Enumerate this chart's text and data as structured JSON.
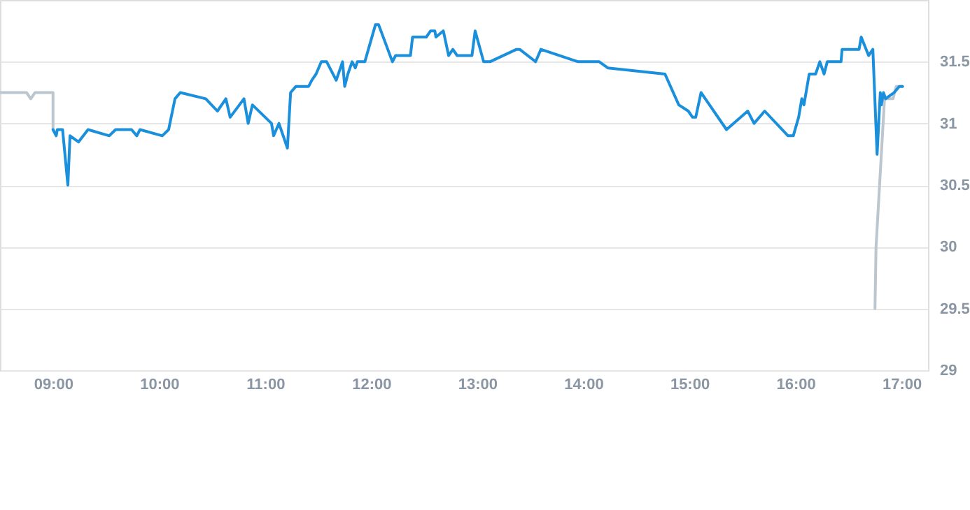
{
  "chart_data": {
    "type": "line",
    "xlim": [
      8.5,
      17.25
    ],
    "ylim": [
      29,
      32
    ],
    "xticks": [
      {
        "value": 9,
        "label": "09:00"
      },
      {
        "value": 10,
        "label": "10:00"
      },
      {
        "value": 11,
        "label": "11:00"
      },
      {
        "value": 12,
        "label": "12:00"
      },
      {
        "value": 13,
        "label": "13:00"
      },
      {
        "value": 14,
        "label": "14:00"
      },
      {
        "value": 15,
        "label": "15:00"
      },
      {
        "value": 16,
        "label": "16:00"
      },
      {
        "value": 17,
        "label": "17:00"
      }
    ],
    "yticks": [
      29,
      29.5,
      30,
      30.5,
      31,
      31.5
    ],
    "grid": "y",
    "line_style": "solid",
    "series": [
      {
        "color": "#bcc6cf",
        "x": [
          8.5,
          8.75,
          8.79,
          8.83,
          9.0,
          9.0
        ],
        "values": [
          31.25,
          31.25,
          31.2,
          31.25,
          31.25,
          30.95
        ]
      },
      {
        "color": "#bcc6cf",
        "x": [
          16.75,
          16.76,
          16.84,
          16.92,
          16.95,
          17.01
        ],
        "values": [
          29.5,
          30.0,
          31.2,
          31.2,
          31.3,
          31.3
        ]
      },
      {
        "color": "#1a8fdc",
        "x": [
          9.0,
          9.03,
          9.04,
          9.09,
          9.14,
          9.16,
          9.24,
          9.33,
          9.53,
          9.59,
          9.74,
          9.79,
          9.82,
          10.03,
          10.09,
          10.15,
          10.2,
          10.44,
          10.55,
          10.63,
          10.67,
          10.8,
          10.84,
          10.88,
          11.06,
          11.08,
          11.13,
          11.21,
          11.24,
          11.29,
          11.41,
          11.44,
          11.48,
          11.53,
          11.58,
          11.67,
          11.73,
          11.75,
          11.78,
          11.82,
          11.85,
          11.87,
          11.94,
          12.04,
          12.07,
          12.2,
          12.23,
          12.37,
          12.39,
          12.52,
          12.56,
          12.6,
          12.61,
          12.68,
          12.73,
          12.77,
          12.81,
          12.95,
          12.98,
          13.06,
          13.12,
          13.37,
          13.4,
          13.55,
          13.6,
          13.95,
          14.15,
          14.23,
          14.77,
          14.9,
          14.99,
          15.03,
          15.06,
          15.11,
          15.35,
          15.55,
          15.61,
          15.71,
          15.93,
          15.98,
          16.03,
          16.06,
          16.08,
          16.11,
          16.13,
          16.19,
          16.23,
          16.27,
          16.3,
          16.43,
          16.44,
          16.6,
          16.62,
          16.69,
          16.73,
          16.77,
          16.8,
          16.81,
          16.83,
          16.85,
          16.93,
          16.98,
          17.01
        ],
        "values": [
          30.95,
          30.9,
          30.95,
          30.95,
          30.5,
          30.9,
          30.85,
          30.95,
          30.9,
          30.95,
          30.95,
          30.9,
          30.95,
          30.9,
          30.95,
          31.2,
          31.25,
          31.2,
          31.1,
          31.2,
          31.05,
          31.2,
          31.0,
          31.15,
          31.0,
          30.9,
          31.0,
          30.8,
          31.25,
          31.3,
          31.3,
          31.35,
          31.4,
          31.5,
          31.5,
          31.35,
          31.5,
          31.3,
          31.4,
          31.5,
          31.45,
          31.5,
          31.5,
          31.8,
          31.8,
          31.5,
          31.55,
          31.55,
          31.7,
          31.7,
          31.75,
          31.75,
          31.7,
          31.75,
          31.55,
          31.6,
          31.55,
          31.55,
          31.75,
          31.5,
          31.5,
          31.6,
          31.6,
          31.5,
          31.6,
          31.5,
          31.5,
          31.45,
          31.4,
          31.15,
          31.1,
          31.05,
          31.05,
          31.25,
          30.95,
          31.1,
          31.0,
          31.1,
          30.9,
          30.9,
          31.05,
          31.2,
          31.15,
          31.3,
          31.4,
          31.4,
          31.5,
          31.4,
          31.5,
          31.5,
          31.6,
          31.6,
          31.7,
          31.55,
          31.6,
          30.75,
          31.25,
          31.15,
          31.25,
          31.2,
          31.25,
          31.3,
          31.3
        ]
      }
    ]
  }
}
